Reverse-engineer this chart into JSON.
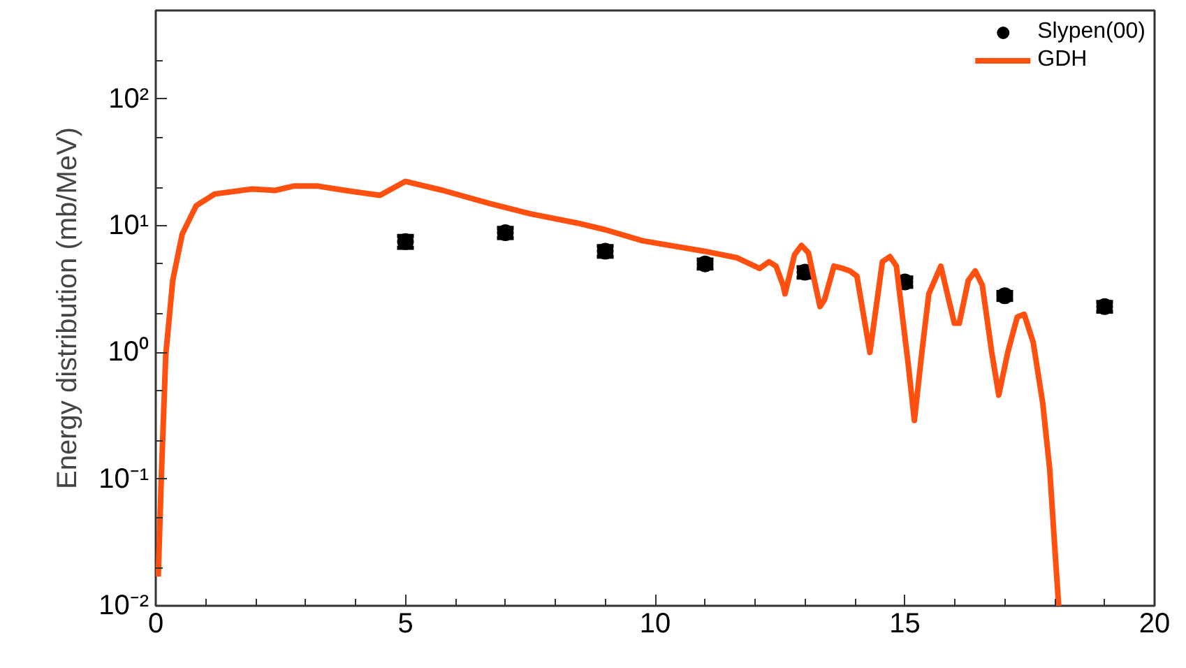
{
  "chart_data": {
    "type": "line",
    "ylabel": "Energy distribution (mb/MeV)",
    "log": "y",
    "xlim": [
      0,
      20
    ],
    "xticks": [
      0,
      5,
      10,
      15,
      20
    ],
    "ylim": [
      0.01,
      500
    ],
    "yticks": [
      {
        "value": 0.01,
        "label": "10⁻²"
      },
      {
        "value": 0.1,
        "label": "10⁻¹"
      },
      {
        "value": 1,
        "label": "10⁰"
      },
      {
        "value": 10,
        "label": "10¹"
      },
      {
        "value": 100,
        "label": "10²"
      }
    ],
    "grid": false,
    "legend": "top right",
    "series": [
      {
        "name": "Slypen(00)",
        "type": "scatter",
        "marker": "circle",
        "color": "#000000",
        "x": [
          5,
          7,
          9,
          11,
          13,
          15,
          17,
          19
        ],
        "values": [
          7.5,
          8.8,
          6.3,
          5.0,
          4.3,
          3.6,
          2.8,
          2.3
        ],
        "errors": [
          0.8,
          0.8,
          0.6,
          0.4,
          0.4,
          0.3,
          0.2,
          0.2
        ]
      },
      {
        "name": "GDH",
        "color": "#ff5010",
        "line_style": "solid",
        "x": [
          0.05,
          0.11,
          0.2,
          0.34,
          0.53,
          0.81,
          1.18,
          1.93,
          2.39,
          2.77,
          3.23,
          3.79,
          4.49,
          5.0,
          5.75,
          6.68,
          7.51,
          8.44,
          9.0,
          9.75,
          10.98,
          11.63,
          12.09,
          12.28,
          12.42,
          12.56,
          12.6,
          12.79,
          12.93,
          13.07,
          13.3,
          13.39,
          13.58,
          13.76,
          13.9,
          14.04,
          14.3,
          14.55,
          14.7,
          14.83,
          15.07,
          15.19,
          15.34,
          15.48,
          15.72,
          15.99,
          16.09,
          16.27,
          16.41,
          16.55,
          16.74,
          16.88,
          17.06,
          17.25,
          17.39,
          17.57,
          17.76,
          17.9,
          17.99,
          18.08
        ],
        "values": [
          0.017,
          0.1,
          0.95,
          3.7,
          8.6,
          14.4,
          17.8,
          19.5,
          19,
          20.6,
          20.6,
          19,
          17.4,
          22.4,
          19,
          15,
          12.4,
          10.5,
          9.3,
          7.6,
          6.3,
          5.6,
          4.6,
          5.2,
          4.8,
          3.4,
          2.9,
          5.9,
          7.0,
          6.1,
          2.3,
          2.6,
          4.8,
          4.6,
          4.4,
          4.0,
          1.0,
          5.2,
          5.7,
          4.8,
          0.79,
          0.29,
          1.0,
          2.9,
          4.8,
          1.7,
          1.7,
          3.7,
          4.4,
          3.4,
          1.0,
          0.46,
          1.0,
          1.9,
          2.0,
          1.2,
          0.4,
          0.12,
          0.034,
          0.01
        ]
      }
    ]
  }
}
